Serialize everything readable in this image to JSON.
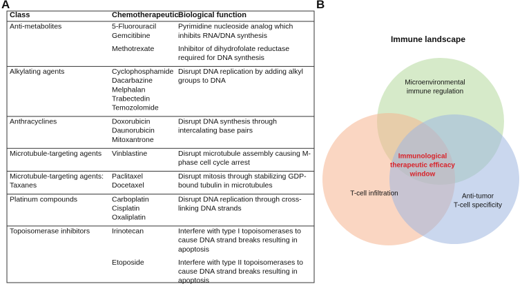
{
  "panel_a": {
    "label": "A"
  },
  "panel_b": {
    "label": "B"
  },
  "table": {
    "header": [
      "Class",
      "Chemotherapeutic",
      "Biological function"
    ],
    "rows": [
      {
        "class": [
          "Anti-metabolites"
        ],
        "groups": [
          {
            "drugs": [
              "5-Fluorouracil",
              "Gemcitibine"
            ],
            "functions": [
              "Pyrimidine nucleoside analog which",
              "inhibits RNA/DNA synthesis"
            ]
          },
          {
            "drugs": [
              "Methotrexate"
            ],
            "functions": [
              "Inhibitor of dihydrofolate reductase",
              "required for DNA synthesis"
            ]
          }
        ]
      },
      {
        "class": [
          "Alkylating agents"
        ],
        "groups": [
          {
            "drugs": [
              "Cyclophosphamide",
              "Dacarbazine",
              "Melphalan",
              "Trabectedin",
              "Temozolomide"
            ],
            "functions": [
              "Disrupt DNA replication by adding alkyl",
              "groups to DNA"
            ]
          }
        ]
      },
      {
        "class": [
          "Anthracyclines"
        ],
        "groups": [
          {
            "drugs": [
              "Doxorubicin",
              "Daunorubicin",
              "Mitoxantrone"
            ],
            "functions": [
              "Disrupt DNA synthesis through",
              "intercalating base pairs"
            ]
          }
        ]
      },
      {
        "class": [
          "Microtubule-targeting agents"
        ],
        "groups": [
          {
            "drugs": [
              "Vinblastine"
            ],
            "functions": [
              "Disrupt microtubule assembly causing M-",
              "phase cell cycle arrest"
            ]
          }
        ]
      },
      {
        "class": [
          "Microtubule-targeting agents:",
          "Taxanes"
        ],
        "groups": [
          {
            "drugs": [
              "Paclitaxel",
              "Docetaxel"
            ],
            "functions": [
              "Disrupt mitosis through stabilizing GDP-",
              "bound tubulin in microtubules"
            ]
          }
        ]
      },
      {
        "class": [
          "Platinum compounds"
        ],
        "groups": [
          {
            "drugs": [
              "Carboplatin",
              "Cisplatin",
              "Oxaliplatin"
            ],
            "functions": [
              "Disrupt DNA replication through cross-",
              "linking DNA strands"
            ]
          }
        ]
      },
      {
        "class": [
          "Topoisomerase inhibitors"
        ],
        "groups": [
          {
            "drugs": [
              "Irinotecan"
            ],
            "functions": [
              "Interfere with type I topoisomerases to",
              "cause DNA strand breaks resulting in",
              "apoptosis"
            ]
          },
          {
            "drugs": [
              "Etoposide"
            ],
            "functions": [
              "Interfere with type II topoisomerases to",
              "cause DNA strand breaks resulting in",
              "apoptosis"
            ]
          }
        ]
      }
    ]
  },
  "venn": {
    "title": "Immune landscape",
    "circles": [
      {
        "lines": [
          "Microenvironmental",
          "immune regulation"
        ]
      },
      {
        "lines": [
          "T-cell infiltration"
        ]
      },
      {
        "lines": [
          "Anti-tumor",
          "T-cell specificity"
        ]
      }
    ],
    "center": {
      "lines": [
        "Immunological",
        "therapeutic efficacy",
        "window"
      ]
    }
  }
}
